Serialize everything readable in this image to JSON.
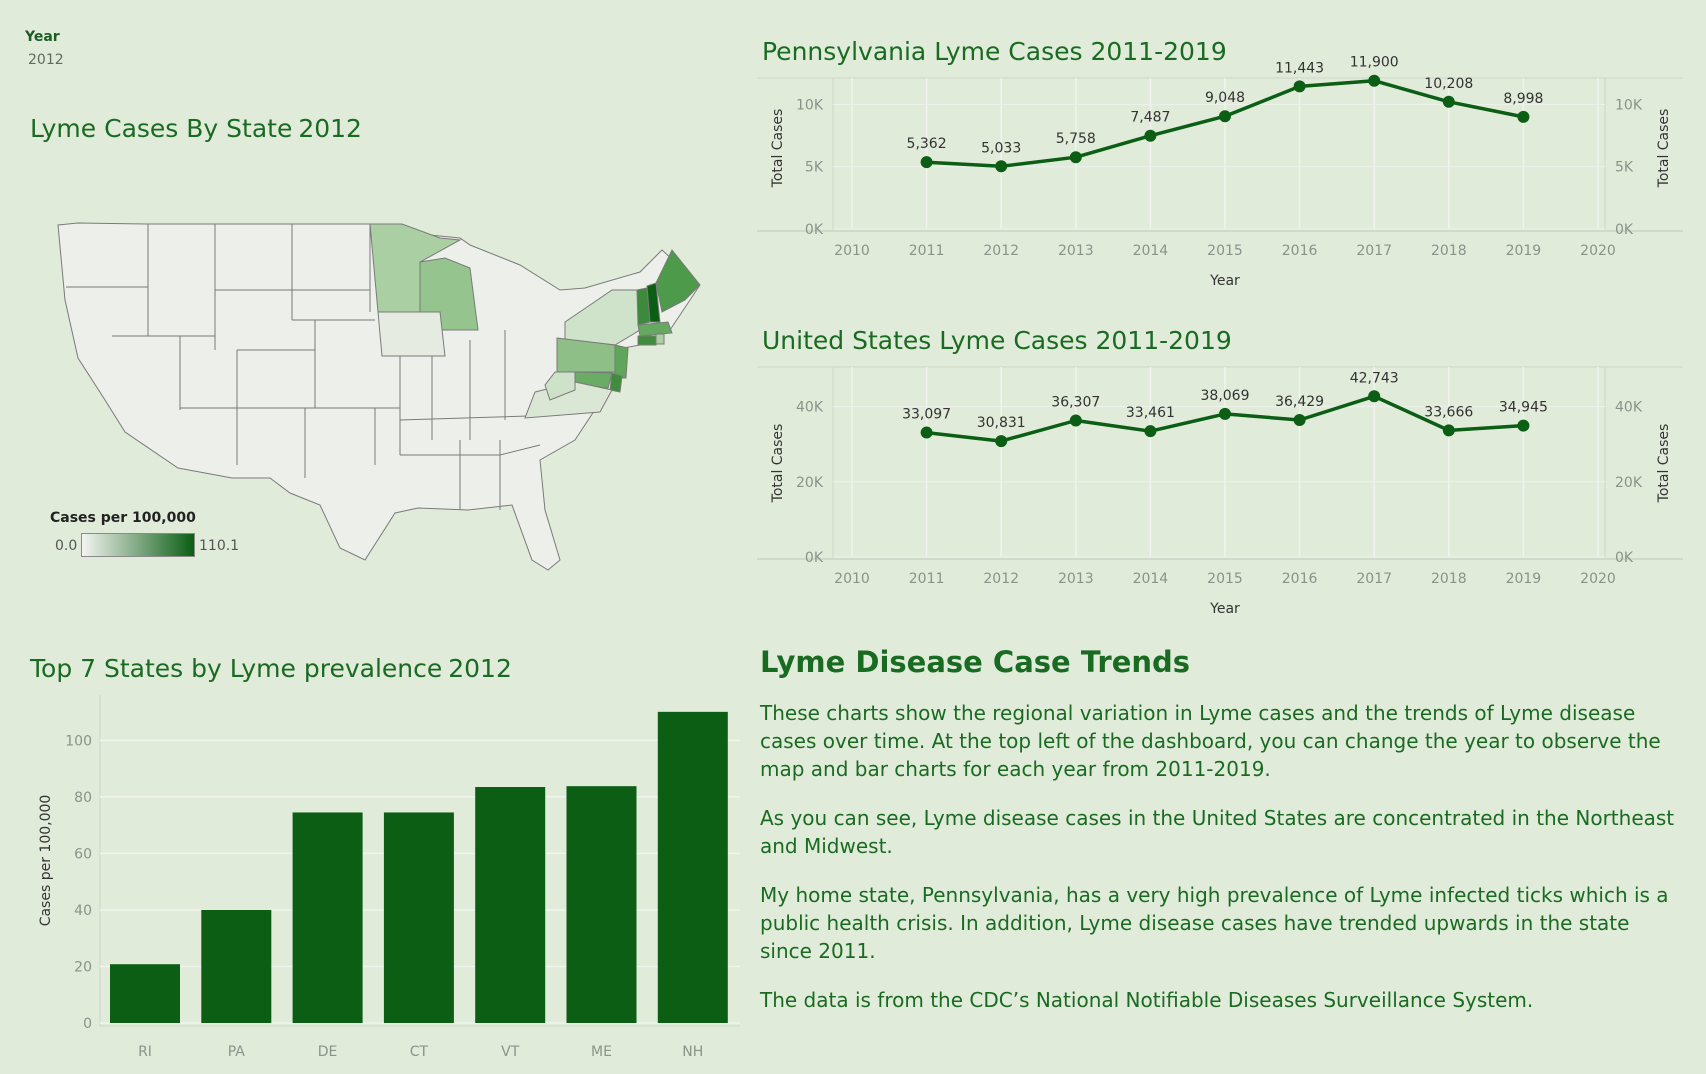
{
  "filter": {
    "label": "Year",
    "value": "2012"
  },
  "map": {
    "title": "Lyme Cases By State",
    "year": "2012",
    "legend": {
      "title": "Cases per 100,000",
      "min": "0.0",
      "max": "110.1"
    },
    "colors": {
      "low": "#f3f4f1",
      "high": "#0b5e14",
      "border": "#7a7a7a"
    }
  },
  "pa_chart": {
    "title": "Pennsylvania Lyme Cases 2011-2019",
    "chart_data": {
      "type": "line",
      "x": [
        2011,
        2012,
        2013,
        2014,
        2015,
        2016,
        2017,
        2018,
        2019
      ],
      "series": [
        {
          "values": [
            5362,
            5033,
            5758,
            7487,
            9048,
            11443,
            11900,
            10208,
            8998
          ]
        }
      ],
      "labels": [
        "5,362",
        "5,033",
        "5,758",
        "7,487",
        "9,048",
        "11,443",
        "11,900",
        "10,208",
        "8,998"
      ],
      "xlabel": "Year",
      "ylabel": "Total Cases",
      "xlim": [
        2010,
        2020
      ],
      "xticks": [
        "2010",
        "2011",
        "2012",
        "2013",
        "2014",
        "2015",
        "2016",
        "2017",
        "2018",
        "2019",
        "2020"
      ],
      "ylim": [
        0,
        13000
      ],
      "yticks": [
        {
          "v": 0,
          "t": "0K"
        },
        {
          "v": 5000,
          "t": "5K"
        },
        {
          "v": 10000,
          "t": "10K"
        }
      ],
      "grid": true,
      "color": "#0b5e14"
    }
  },
  "us_chart": {
    "title": "United States Lyme Cases 2011-2019",
    "chart_data": {
      "type": "line",
      "x": [
        2011,
        2012,
        2013,
        2014,
        2015,
        2016,
        2017,
        2018,
        2019
      ],
      "series": [
        {
          "values": [
            33097,
            30831,
            36307,
            33461,
            38069,
            36429,
            42743,
            33666,
            34945
          ]
        }
      ],
      "labels": [
        "33,097",
        "30,831",
        "36,307",
        "33,461",
        "38,069",
        "36,429",
        "42,743",
        "33,666",
        "34,945"
      ],
      "xlabel": "Year",
      "ylabel": "Total Cases",
      "xlim": [
        2010,
        2020
      ],
      "xticks": [
        "2010",
        "2011",
        "2012",
        "2013",
        "2014",
        "2015",
        "2016",
        "2017",
        "2018",
        "2019",
        "2020"
      ],
      "ylim": [
        0,
        50000
      ],
      "yticks": [
        {
          "v": 0,
          "t": "0K"
        },
        {
          "v": 20000,
          "t": "20K"
        },
        {
          "v": 40000,
          "t": "40K"
        }
      ],
      "grid": true,
      "color": "#0b5e14"
    }
  },
  "bar_chart": {
    "title": "Top 7 States by Lyme prevalence",
    "year": "2012",
    "chart_data": {
      "type": "bar",
      "categories": [
        "RI",
        "PA",
        "DE",
        "CT",
        "VT",
        "ME",
        "NH"
      ],
      "values": [
        20.8,
        40,
        74.5,
        74.5,
        83.5,
        83.8,
        110.1
      ],
      "xlabel": "",
      "ylabel": "Cases per 100,000",
      "ylim": [
        0,
        115
      ],
      "yticks": [
        "0",
        "20",
        "40",
        "60",
        "80",
        "100"
      ],
      "grid": true,
      "color": "#0b5e14"
    }
  },
  "text_panel": {
    "heading": "Lyme Disease Case Trends",
    "paragraphs": [
      "These charts show the regional variation in Lyme cases and the trends of Lyme disease cases over time. At the top left of the dashboard, you can change the year to observe the map and bar charts for each year from 2011-2019.",
      "As you can see, Lyme disease cases in the United States are concentrated in the Northeast and Midwest.",
      "My home state, Pennsylvania, has a very high prevalence of Lyme infected ticks which is a public health crisis. In addition, Lyme disease cases have trended upwards in the state since 2011.",
      "The data is from the CDC’s National Notifiable Diseases Surveillance System."
    ]
  }
}
